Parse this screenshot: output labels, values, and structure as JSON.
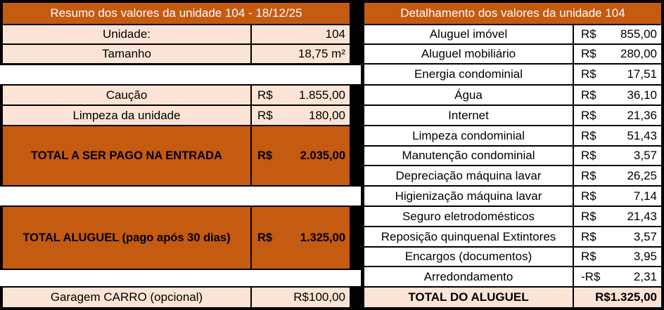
{
  "left": {
    "header": "Resumo dos valores da unidade 104 - 18/12/25",
    "unidade": {
      "label": "Unidade:",
      "value": "104"
    },
    "tamanho": {
      "label": "Tamanho",
      "value": "18,75 m²"
    },
    "caucao": {
      "label": "Caução",
      "currency": "R$",
      "value": "1.855,00"
    },
    "limpeza": {
      "label": "Limpeza da unidade",
      "currency": "R$",
      "value": "180,00"
    },
    "total_entrada": {
      "label": "TOTAL A SER PAGO NA ENTRADA",
      "currency": "R$",
      "value": "2.035,00"
    },
    "total_aluguel": {
      "label": "TOTAL ALUGUEL (pago após 30 dias)",
      "currency": "R$",
      "value": "1.325,00"
    },
    "garagem": {
      "label": "Garagem CARRO (opcional)",
      "value": "R$100,00"
    }
  },
  "right": {
    "header": "Detalhamento dos valores da unidade 104",
    "items": [
      {
        "label": "Aluguel imóvel",
        "currency": "R$",
        "value": "855,00"
      },
      {
        "label": "Aluguel mobiliário",
        "currency": "R$",
        "value": "280,00"
      },
      {
        "label": "Energia condominial",
        "currency": "R$",
        "value": "17,51"
      },
      {
        "label": "Água",
        "currency": "R$",
        "value": "36,10"
      },
      {
        "label": "Internet",
        "currency": "R$",
        "value": "21,36"
      },
      {
        "label": "Limpeza condominial",
        "currency": "R$",
        "value": "51,43"
      },
      {
        "label": "Manutenção condominial",
        "currency": "R$",
        "value": "3,57"
      },
      {
        "label": "Depreciação máquina lavar",
        "currency": "R$",
        "value": "26,25"
      },
      {
        "label": "Higienização máquina lavar",
        "currency": "R$",
        "value": "7,14"
      },
      {
        "label": "Seguro eletrodomésticos",
        "currency": "R$",
        "value": "21,43"
      },
      {
        "label": "Reposição quinquenal Extintores",
        "currency": "R$",
        "value": "3,57"
      },
      {
        "label": "Encargos (documentos)",
        "currency": "R$",
        "value": "3,95"
      },
      {
        "label": "Arredondamento",
        "currency": "-R$",
        "value": "2,31"
      }
    ],
    "total": {
      "label": "TOTAL DO ALUGUEL",
      "value": "R$1.325,00"
    }
  },
  "colors": {
    "accent": "#c55a11",
    "peach": "#fbe4d5",
    "border": "#000000"
  }
}
